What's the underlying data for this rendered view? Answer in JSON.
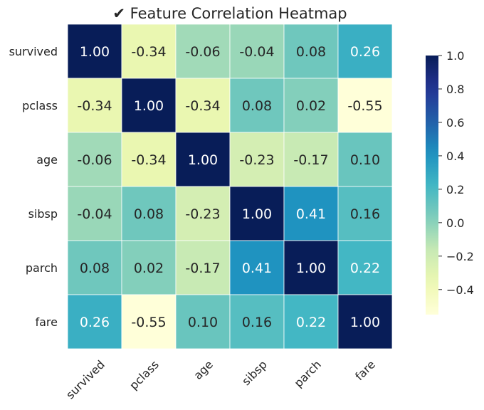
{
  "chart_data": {
    "type": "heatmap",
    "title": "✔ Feature Correlation Heatmap",
    "rows": [
      "survived",
      "pclass",
      "age",
      "sibsp",
      "parch",
      "fare"
    ],
    "cols": [
      "survived",
      "pclass",
      "age",
      "sibsp",
      "parch",
      "fare"
    ],
    "values": [
      [
        1.0,
        -0.34,
        -0.06,
        -0.04,
        0.08,
        0.26
      ],
      [
        -0.34,
        1.0,
        -0.34,
        0.08,
        0.02,
        -0.55
      ],
      [
        -0.06,
        -0.34,
        1.0,
        -0.23,
        -0.17,
        0.1
      ],
      [
        -0.04,
        0.08,
        -0.23,
        1.0,
        0.41,
        0.16
      ],
      [
        0.08,
        0.02,
        -0.17,
        0.41,
        1.0,
        0.22
      ],
      [
        0.26,
        -0.55,
        0.1,
        0.16,
        0.22,
        1.0
      ]
    ],
    "cell_labels": [
      [
        "1.00",
        "-0.34",
        "-0.06",
        "-0.04",
        "0.08",
        "0.26"
      ],
      [
        "-0.34",
        "1.00",
        "-0.34",
        "0.08",
        "0.02",
        "-0.55"
      ],
      [
        "-0.06",
        "-0.34",
        "1.00",
        "-0.23",
        "-0.17",
        "0.10"
      ],
      [
        "-0.04",
        "0.08",
        "-0.23",
        "1.00",
        "0.41",
        "0.16"
      ],
      [
        "0.08",
        "0.02",
        "-0.17",
        "0.41",
        "1.00",
        "0.22"
      ],
      [
        "0.26",
        "-0.55",
        "0.10",
        "0.16",
        "0.22",
        "1.00"
      ]
    ],
    "colormap": "YlGnBu",
    "vmin": -0.55,
    "vmax": 1.0,
    "colorbar": {
      "ticks": [
        1.0,
        0.8,
        0.6,
        0.4,
        0.2,
        0.0,
        -0.2,
        -0.4
      ],
      "tick_labels": [
        "1.0",
        "0.8",
        "0.6",
        "0.4",
        "0.2",
        "0.0",
        "−0.2",
        "−0.4"
      ],
      "placement": "right"
    },
    "xlabel": "",
    "ylabel": "",
    "x_tick_rotation": 45
  }
}
